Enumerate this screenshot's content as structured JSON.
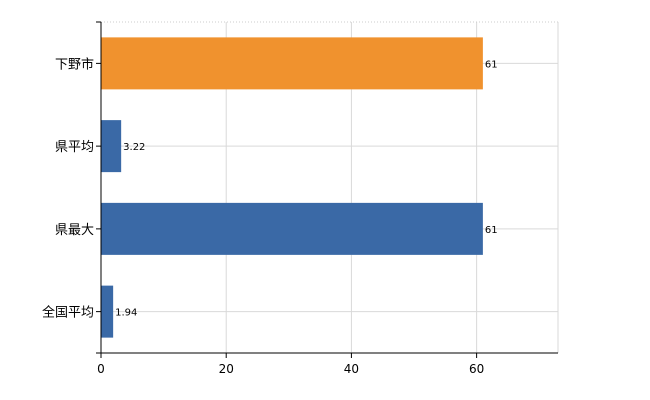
{
  "chart_data": {
    "type": "bar",
    "orientation": "horizontal",
    "categories": [
      "下野市",
      "県平均",
      "県最大",
      "全国平均"
    ],
    "values": [
      61,
      3.22,
      61,
      1.94
    ],
    "value_labels": [
      "61",
      "3.22",
      "61",
      "1.94"
    ],
    "bar_colors": [
      "#f0922e",
      "#3a69a6",
      "#3a69a6",
      "#3a69a6"
    ],
    "xlim": [
      0,
      73
    ],
    "xticks": [
      0,
      20,
      40,
      60
    ],
    "xtick_labels": [
      "0",
      "20",
      "40",
      "60"
    ],
    "grid": true,
    "title": "",
    "xlabel": "",
    "ylabel": ""
  }
}
